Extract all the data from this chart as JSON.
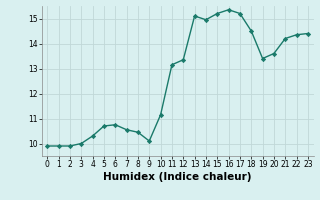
{
  "x": [
    0,
    1,
    2,
    3,
    4,
    5,
    6,
    7,
    8,
    9,
    10,
    11,
    12,
    13,
    14,
    15,
    16,
    17,
    18,
    19,
    20,
    21,
    22,
    23
  ],
  "y": [
    9.9,
    9.9,
    9.9,
    10.0,
    10.3,
    10.7,
    10.75,
    10.55,
    10.45,
    10.1,
    11.15,
    13.15,
    13.35,
    15.1,
    14.95,
    15.2,
    15.35,
    15.2,
    14.5,
    13.4,
    13.6,
    14.2,
    14.35,
    14.4
  ],
  "line_color": "#1a7a6a",
  "marker": "D",
  "marker_size": 2.2,
  "bg_color": "#d9f0f0",
  "grid_color": "#c0d8d8",
  "xlabel": "Humidex (Indice chaleur)",
  "xlim": [
    -0.5,
    23.5
  ],
  "ylim": [
    9.5,
    15.5
  ],
  "yticks": [
    10,
    11,
    12,
    13,
    14,
    15
  ],
  "xticks": [
    0,
    1,
    2,
    3,
    4,
    5,
    6,
    7,
    8,
    9,
    10,
    11,
    12,
    13,
    14,
    15,
    16,
    17,
    18,
    19,
    20,
    21,
    22,
    23
  ],
  "tick_label_fontsize": 5.5,
  "xlabel_fontsize": 7.5,
  "line_width": 1.0
}
